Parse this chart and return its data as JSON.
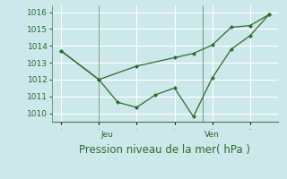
{
  "line1_x": [
    0,
    2,
    4,
    6,
    7,
    8,
    9,
    10,
    11
  ],
  "line1_y": [
    1013.7,
    1012.0,
    1012.8,
    1013.3,
    1013.55,
    1014.05,
    1015.1,
    1015.2,
    1015.85
  ],
  "line2_x": [
    0,
    2,
    3,
    4,
    5,
    6,
    7,
    8,
    9,
    10,
    11
  ],
  "line2_y": [
    1013.7,
    1012.0,
    1010.65,
    1010.35,
    1011.1,
    1011.5,
    1009.8,
    1012.1,
    1013.8,
    1014.6,
    1015.85
  ],
  "color": "#2d6a2d",
  "bg_color": "#cce8ea",
  "grid_color": "#ffffff",
  "grid_minor_color": "#ddeef0",
  "xlabel": "Pression niveau de la mer( hPa )",
  "ylim": [
    1009.5,
    1016.4
  ],
  "yticks": [
    1010,
    1011,
    1012,
    1013,
    1014,
    1015,
    1016
  ],
  "xlim": [
    -0.5,
    11.5
  ],
  "jeu_x": 2.0,
  "ven_x": 7.5,
  "tick_label_fontsize": 6.5,
  "xlabel_fontsize": 8.5,
  "marker": "D",
  "markersize": 2.5
}
